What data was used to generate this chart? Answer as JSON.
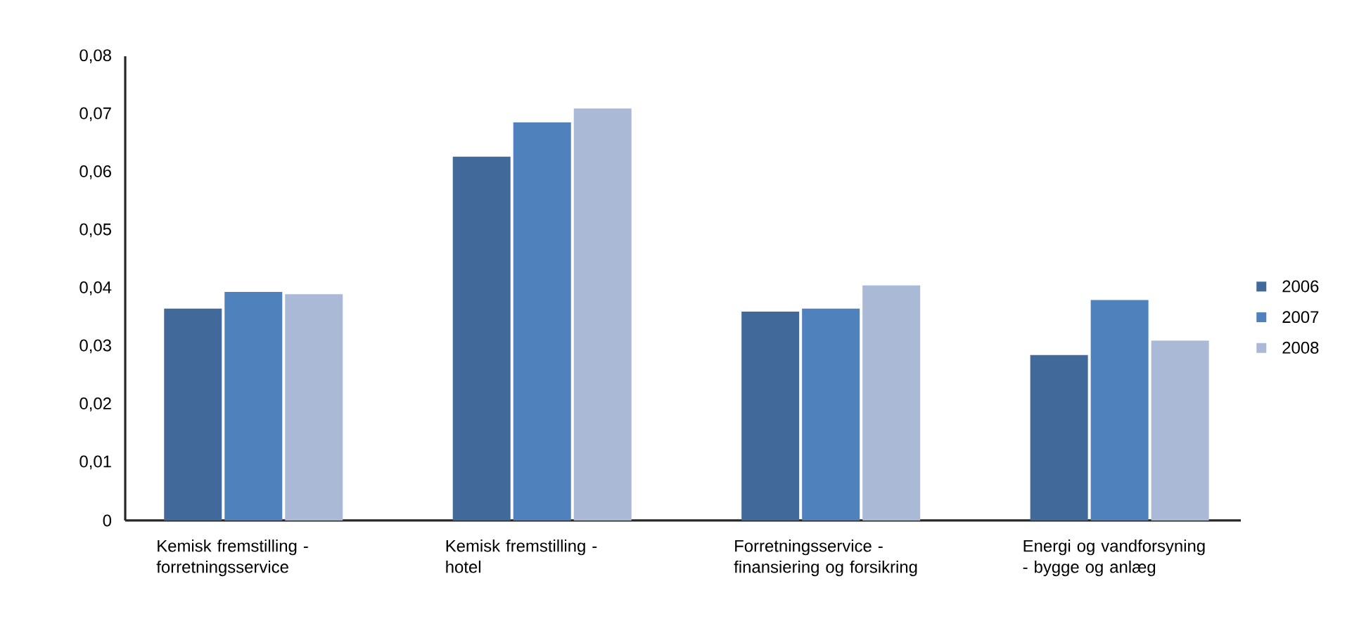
{
  "chart_data": {
    "type": "bar",
    "categories": [
      "Kemisk fremstilling - forretningsservice",
      "Kemisk fremstilling - hotel",
      "Forretningsservice - finansiering og forsikring",
      "Energi og vandforsyning - bygge og anlæg"
    ],
    "series": [
      {
        "name": "2006",
        "color": "#416a9b",
        "values": [
          0.0365,
          0.0627,
          0.036,
          0.0285
        ]
      },
      {
        "name": "2007",
        "color": "#4f81bd",
        "values": [
          0.0394,
          0.0686,
          0.0365,
          0.038
        ]
      },
      {
        "name": "2008",
        "color": "#aab9d6",
        "values": [
          0.039,
          0.071,
          0.0405,
          0.031
        ]
      }
    ],
    "ylim": [
      0,
      0.08
    ],
    "yticks": [
      0,
      {
        "value": 0.01,
        "label": "0,01"
      },
      {
        "value": 0.02,
        "label": "0,02"
      },
      {
        "value": 0.03,
        "label": "0,03"
      },
      {
        "value": 0.04,
        "label": "0,04"
      },
      {
        "value": 0.05,
        "label": "0,05"
      },
      {
        "value": 0.06,
        "label": "0,06"
      },
      {
        "value": 0.07,
        "label": "0,07"
      },
      {
        "value": 0.08,
        "label": "0,08"
      }
    ],
    "grid": false,
    "legend": "right"
  }
}
